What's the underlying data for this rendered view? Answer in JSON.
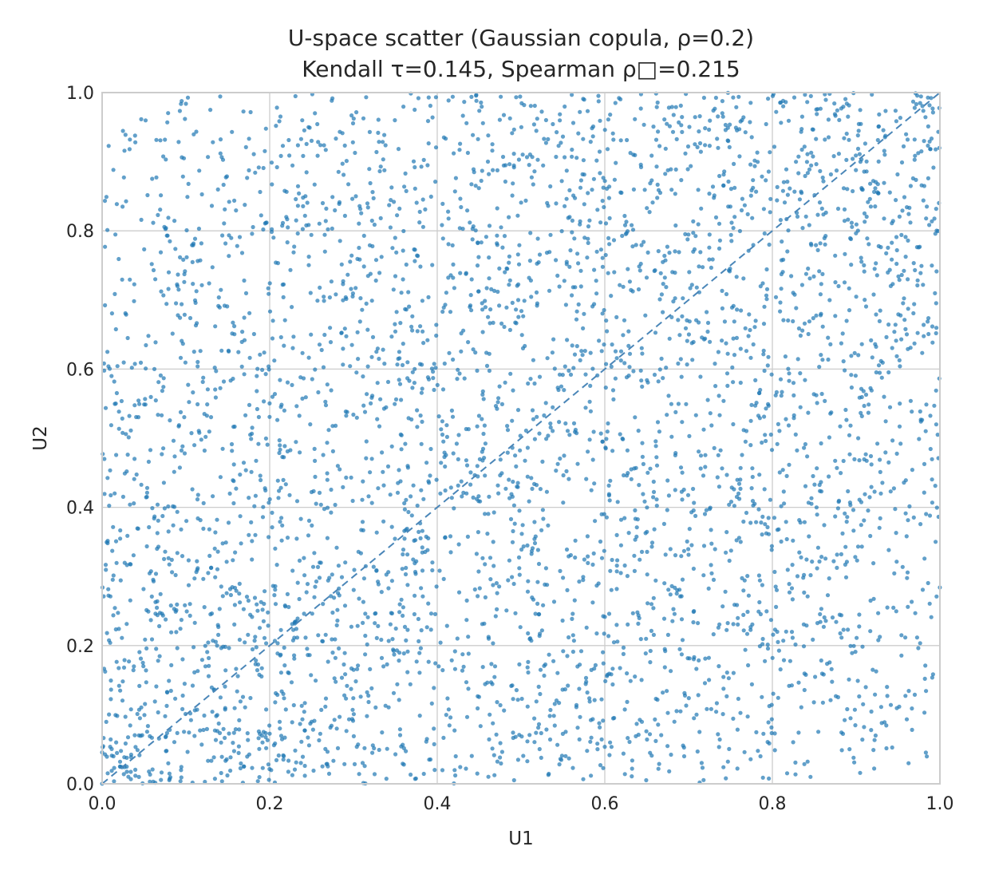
{
  "chart_data": {
    "type": "scatter",
    "title": "U-space scatter (Gaussian copula, ρ=0.2)",
    "subtitle": "Kendall τ=0.145, Spearman ρ□=0.215",
    "xlabel": "U1",
    "ylabel": "U2",
    "xlim": [
      0.0,
      1.0
    ],
    "ylim": [
      0.0,
      1.0
    ],
    "xticks": [
      "0.0",
      "0.2",
      "0.4",
      "0.6",
      "0.8",
      "1.0"
    ],
    "yticks": [
      "0.0",
      "0.2",
      "0.4",
      "0.6",
      "0.8",
      "1.0"
    ],
    "grid": true,
    "legend": "none",
    "copula": {
      "family": "gaussian",
      "rho": 0.2,
      "n_points": 4000
    },
    "reference_line": {
      "style": "dashed",
      "from": [
        0.0,
        0.0
      ],
      "to": [
        1.0,
        1.0
      ]
    },
    "point_color": "#1f77b4",
    "point_alpha": 0.7,
    "line_color": "#4a86b8"
  }
}
